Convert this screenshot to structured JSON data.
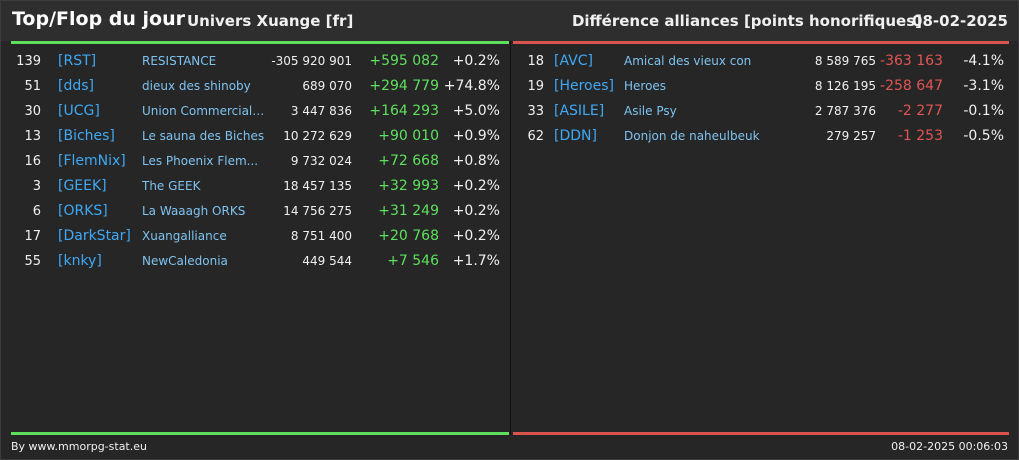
{
  "header": {
    "title": "Top/Flop du jour",
    "subtitle": "Univers Xuange [fr]",
    "right_title": "Différence alliances [points honorifiques]",
    "date": "08-02-2025"
  },
  "colors": {
    "top": "#5ee05e",
    "flop": "#d9534f",
    "tag": "#3fa9f5"
  },
  "top": [
    {
      "rank": "139",
      "tag": "[RST]",
      "name": "RESISTANCE",
      "points": "-305 920 901",
      "diff": "+595 082",
      "pct": "+0.2%"
    },
    {
      "rank": "51",
      "tag": "[dds]",
      "name": "dieux des shinoby",
      "points": "689 070",
      "diff": "+294 779",
      "pct": "+74.8%"
    },
    {
      "rank": "30",
      "tag": "[UCG]",
      "name": "Union Commerciale...",
      "points": "3 447 836",
      "diff": "+164 293",
      "pct": "+5.0%"
    },
    {
      "rank": "13",
      "tag": "[Biches]",
      "name": "Le sauna des Biches",
      "points": "10 272 629",
      "diff": "+90 010",
      "pct": "+0.9%"
    },
    {
      "rank": "16",
      "tag": "[FlemNix]",
      "name": "Les Phoenix Flem...",
      "points": "9 732 024",
      "diff": "+72 668",
      "pct": "+0.8%"
    },
    {
      "rank": "3",
      "tag": "[GEEK]",
      "name": "The GEEK",
      "points": "18 457 135",
      "diff": "+32 993",
      "pct": "+0.2%"
    },
    {
      "rank": "6",
      "tag": "[ORKS]",
      "name": "La Waaagh ORKS",
      "points": "14 756 275",
      "diff": "+31 249",
      "pct": "+0.2%"
    },
    {
      "rank": "17",
      "tag": "[DarkStar]",
      "name": "Xuangalliance",
      "points": "8 751 400",
      "diff": "+20 768",
      "pct": "+0.2%"
    },
    {
      "rank": "55",
      "tag": "[knky]",
      "name": "NewCaledonia",
      "points": "449 544",
      "diff": "+7 546",
      "pct": "+1.7%"
    }
  ],
  "flop": [
    {
      "rank": "18",
      "tag": "[AVC]",
      "name": "Amical des vieux con",
      "points": "8 589 765",
      "diff": "-363 163",
      "pct": "-4.1%"
    },
    {
      "rank": "19",
      "tag": "[Heroes]",
      "name": "Heroes",
      "points": "8 126 195",
      "diff": "-258 647",
      "pct": "-3.1%"
    },
    {
      "rank": "33",
      "tag": "[ASILE]",
      "name": "Asile Psy",
      "points": "2 787 376",
      "diff": "-2 277",
      "pct": "-0.1%"
    },
    {
      "rank": "62",
      "tag": "[DDN]",
      "name": "Donjon de naheulbeuk",
      "points": "279 257",
      "diff": "-1 253",
      "pct": "-0.5%"
    }
  ],
  "footer": {
    "credit": "By www.mmorpg-stat.eu",
    "timestamp": "08-02-2025 00:06:03"
  }
}
